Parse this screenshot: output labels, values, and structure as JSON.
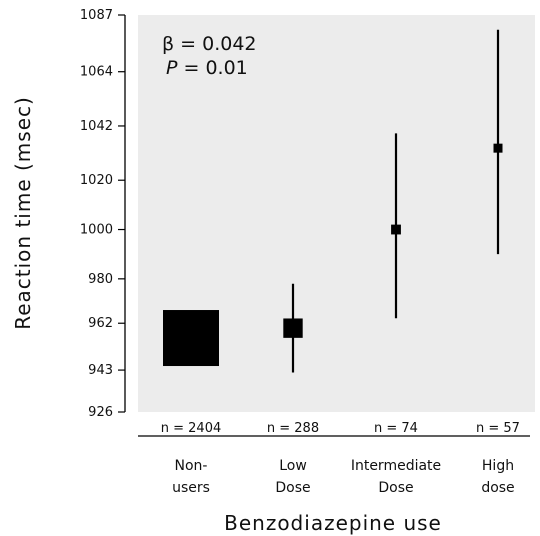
{
  "chart_data": {
    "type": "scatter",
    "title": "",
    "xlabel": "Benzodiazepine use",
    "ylabel": "Reaction time (msec)",
    "ylim": [
      926,
      1087
    ],
    "yticks": [
      926,
      943,
      962,
      980,
      1000,
      1020,
      1042,
      1064,
      1087
    ],
    "grid": false,
    "categories": [
      {
        "line1": "Non-",
        "line2": "users",
        "n": "n = 2404",
        "value": 956,
        "lower": 956,
        "upper": 956,
        "marker_weight": 2404
      },
      {
        "line1": "Low",
        "line2": "Dose",
        "n": "n = 288",
        "value": 960,
        "lower": 942,
        "upper": 978,
        "marker_weight": 288
      },
      {
        "line1": "Intermediate",
        "line2": "Dose",
        "n": "n = 74",
        "value": 1000,
        "lower": 964,
        "upper": 1039,
        "marker_weight": 74
      },
      {
        "line1": "High",
        "line2": "dose",
        "n": "n = 57",
        "value": 1033,
        "lower": 990,
        "upper": 1081,
        "marker_weight": 57
      }
    ],
    "annotation": {
      "beta": "β = 0.042",
      "p_letter": "P",
      "p_value": " = 0.01"
    },
    "colors": {
      "plot_background": "#ececec",
      "marker": "#000000"
    }
  }
}
